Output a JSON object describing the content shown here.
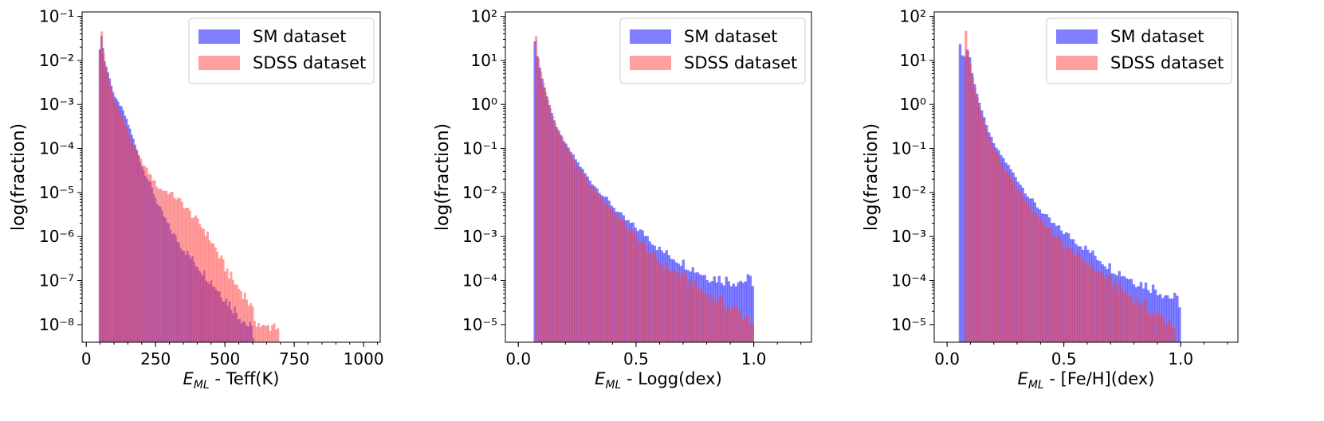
{
  "colors": {
    "sm": "#0000ff",
    "sdss": "#ff4040",
    "overlap": "#8b008b"
  },
  "chart_data": [
    {
      "type": "histogram",
      "xlabel": {
        "main": "E",
        "sub": "ML",
        "rest": " - Teff(K)"
      },
      "ylabel": "log(fraction)",
      "xlim": [
        -15,
        1060
      ],
      "ylim_log10": [
        -8.4,
        -0.9
      ],
      "y_scale": "log",
      "x_ticks": [
        0,
        250,
        500,
        750,
        1000
      ],
      "x_tick_labels": [
        "0",
        "250",
        "500",
        "750",
        "1000"
      ],
      "y_ticks_log10": [
        -8,
        -7,
        -6,
        -5,
        -4,
        -3,
        -2,
        -1
      ],
      "y_tick_labels": [
        "10⁻⁸",
        "10⁻⁷",
        "10⁻⁶",
        "10⁻⁵",
        "10⁻⁴",
        "10⁻³",
        "10⁻²",
        "10⁻¹"
      ],
      "legend": {
        "position": "top-right",
        "entries": [
          "SM dataset",
          "SDSS dataset"
        ]
      },
      "series": [
        {
          "name": "SM dataset",
          "color_key": "sm",
          "x_range": [
            45,
            605
          ],
          "points_log10": [
            [
              45,
              -1.9
            ],
            [
              55,
              -1.4
            ],
            [
              65,
              -2.0
            ],
            [
              80,
              -2.3
            ],
            [
              100,
              -2.8
            ],
            [
              130,
              -3.1
            ],
            [
              160,
              -3.6
            ],
            [
              200,
              -4.4
            ],
            [
              230,
              -4.8
            ],
            [
              260,
              -5.3
            ],
            [
              300,
              -5.8
            ],
            [
              340,
              -6.2
            ],
            [
              380,
              -6.5
            ],
            [
              420,
              -6.8
            ],
            [
              460,
              -7.1
            ],
            [
              500,
              -7.4
            ],
            [
              540,
              -7.7
            ],
            [
              580,
              -8.0
            ],
            [
              605,
              -8.2
            ]
          ]
        },
        {
          "name": "SDSS dataset",
          "color_key": "sdss",
          "x_range": [
            45,
            695
          ],
          "points_log10": [
            [
              45,
              -2.0
            ],
            [
              55,
              -1.3
            ],
            [
              65,
              -2.0
            ],
            [
              80,
              -2.4
            ],
            [
              100,
              -2.9
            ],
            [
              130,
              -3.3
            ],
            [
              160,
              -3.8
            ],
            [
              200,
              -4.3
            ],
            [
              230,
              -4.6
            ],
            [
              260,
              -4.9
            ],
            [
              300,
              -5.0
            ],
            [
              340,
              -5.2
            ],
            [
              380,
              -5.5
            ],
            [
              420,
              -5.8
            ],
            [
              460,
              -6.2
            ],
            [
              500,
              -6.7
            ],
            [
              540,
              -7.1
            ],
            [
              580,
              -7.4
            ],
            [
              610,
              -7.9
            ],
            [
              640,
              -8.1
            ],
            [
              670,
              -8.0
            ],
            [
              695,
              -8.0
            ]
          ]
        }
      ]
    },
    {
      "type": "histogram",
      "xlabel": {
        "main": "E",
        "sub": "ML",
        "rest": " - Logg(dex)"
      },
      "ylabel": "log(fraction)",
      "xlim": [
        -0.055,
        1.245
      ],
      "ylim_log10": [
        -5.4,
        2.1
      ],
      "y_scale": "log",
      "x_ticks": [
        0.0,
        0.5,
        1.0
      ],
      "x_tick_labels": [
        "0.0",
        "0.5",
        "1.0"
      ],
      "y_ticks_log10": [
        -5,
        -4,
        -3,
        -2,
        -1,
        0,
        1,
        2
      ],
      "y_tick_labels": [
        "10⁻⁵",
        "10⁻⁴",
        "10⁻³",
        "10⁻²",
        "10⁻¹",
        "10⁰",
        "10¹",
        "10²"
      ],
      "legend": {
        "position": "top-right",
        "entries": [
          "SM dataset",
          "SDSS dataset"
        ]
      },
      "series": [
        {
          "name": "SM dataset",
          "color_key": "sm",
          "x_range": [
            0.065,
            1.0
          ],
          "points_log10": [
            [
              0.065,
              1.6
            ],
            [
              0.08,
              1.1
            ],
            [
              0.1,
              0.6
            ],
            [
              0.13,
              0.0
            ],
            [
              0.16,
              -0.5
            ],
            [
              0.2,
              -0.9
            ],
            [
              0.25,
              -1.3
            ],
            [
              0.3,
              -1.7
            ],
            [
              0.35,
              -2.0
            ],
            [
              0.4,
              -2.3
            ],
            [
              0.45,
              -2.6
            ],
            [
              0.5,
              -2.8
            ],
            [
              0.55,
              -3.0
            ],
            [
              0.6,
              -3.3
            ],
            [
              0.7,
              -3.6
            ],
            [
              0.8,
              -3.9
            ],
            [
              0.9,
              -4.0
            ],
            [
              1.0,
              -4.0
            ]
          ]
        },
        {
          "name": "SDSS dataset",
          "color_key": "sdss",
          "x_range": [
            0.07,
            1.0
          ],
          "points_log10": [
            [
              0.07,
              1.9
            ],
            [
              0.08,
              1.2
            ],
            [
              0.1,
              0.6
            ],
            [
              0.13,
              0.0
            ],
            [
              0.16,
              -0.5
            ],
            [
              0.2,
              -0.9
            ],
            [
              0.25,
              -1.4
            ],
            [
              0.3,
              -1.8
            ],
            [
              0.35,
              -2.1
            ],
            [
              0.4,
              -2.4
            ],
            [
              0.45,
              -2.7
            ],
            [
              0.5,
              -3.0
            ],
            [
              0.55,
              -3.3
            ],
            [
              0.6,
              -3.6
            ],
            [
              0.7,
              -3.9
            ],
            [
              0.8,
              -4.3
            ],
            [
              0.9,
              -4.6
            ],
            [
              1.0,
              -4.9
            ]
          ]
        }
      ]
    },
    {
      "type": "histogram",
      "xlabel": {
        "main": "E",
        "sub": "ML",
        "rest": " - [Fe/H](dex)"
      },
      "ylabel": "log(fraction)",
      "xlim": [
        -0.055,
        1.245
      ],
      "ylim_log10": [
        -5.4,
        2.1
      ],
      "y_scale": "log",
      "x_ticks": [
        0.0,
        0.5,
        1.0
      ],
      "x_tick_labels": [
        "0.0",
        "0.5",
        "1.0"
      ],
      "y_ticks_log10": [
        -5,
        -4,
        -3,
        -2,
        -1,
        0,
        1,
        2
      ],
      "y_tick_labels": [
        "10⁻⁵",
        "10⁻⁴",
        "10⁻³",
        "10⁻²",
        "10⁻¹",
        "10⁰",
        "10¹",
        "10²"
      ],
      "legend": {
        "position": "top-right",
        "entries": [
          "SM dataset",
          "SDSS dataset"
        ]
      },
      "series": [
        {
          "name": "SM dataset",
          "color_key": "sm",
          "x_range": [
            0.05,
            1.0
          ],
          "points_log10": [
            [
              0.05,
              1.5
            ],
            [
              0.07,
              1.0
            ],
            [
              0.09,
              1.3
            ],
            [
              0.11,
              0.6
            ],
            [
              0.14,
              0.0
            ],
            [
              0.17,
              -0.5
            ],
            [
              0.2,
              -0.9
            ],
            [
              0.25,
              -1.3
            ],
            [
              0.3,
              -1.7
            ],
            [
              0.35,
              -2.1
            ],
            [
              0.4,
              -2.4
            ],
            [
              0.45,
              -2.7
            ],
            [
              0.5,
              -2.9
            ],
            [
              0.55,
              -3.1
            ],
            [
              0.6,
              -3.3
            ],
            [
              0.7,
              -3.7
            ],
            [
              0.8,
              -4.0
            ],
            [
              0.9,
              -4.2
            ],
            [
              1.0,
              -4.5
            ]
          ]
        },
        {
          "name": "SDSS dataset",
          "color_key": "sdss",
          "x_range": [
            0.075,
            0.98
          ],
          "points_log10": [
            [
              0.075,
              1.9
            ],
            [
              0.09,
              1.2
            ],
            [
              0.11,
              0.6
            ],
            [
              0.14,
              -0.1
            ],
            [
              0.17,
              -0.6
            ],
            [
              0.2,
              -1.0
            ],
            [
              0.25,
              -1.5
            ],
            [
              0.3,
              -1.9
            ],
            [
              0.35,
              -2.3
            ],
            [
              0.4,
              -2.6
            ],
            [
              0.45,
              -2.9
            ],
            [
              0.5,
              -3.2
            ],
            [
              0.55,
              -3.4
            ],
            [
              0.6,
              -3.6
            ],
            [
              0.7,
              -4.0
            ],
            [
              0.8,
              -4.4
            ],
            [
              0.9,
              -4.8
            ],
            [
              0.98,
              -5.0
            ]
          ]
        }
      ]
    }
  ]
}
